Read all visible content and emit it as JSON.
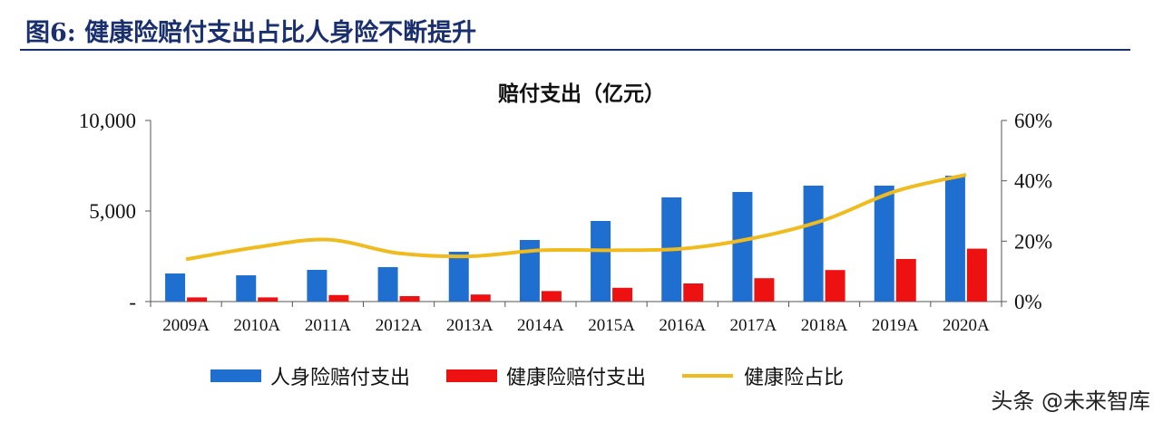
{
  "figure": {
    "title": "图6:  健康险赔付支出占比人身险不断提升"
  },
  "watermark": "头条 @未来智库",
  "chart_data": {
    "type": "bar",
    "title": "赔付支出（亿元）",
    "categories": [
      "2009A",
      "2010A",
      "2011A",
      "2012A",
      "2013A",
      "2014A",
      "2015A",
      "2016A",
      "2017A",
      "2018A",
      "2019A",
      "2020A"
    ],
    "series": [
      {
        "name": "人身险赔付支出",
        "type": "bar",
        "axis": "left",
        "color": "#1f6fd1",
        "values": [
          1550,
          1450,
          1750,
          1900,
          2750,
          3400,
          4450,
          5750,
          6050,
          6400,
          6400,
          6950
        ]
      },
      {
        "name": "健康险赔付支出",
        "type": "bar",
        "axis": "left",
        "color": "#ee1111",
        "values": [
          230,
          230,
          360,
          300,
          390,
          580,
          760,
          1000,
          1290,
          1740,
          2350,
          2920
        ]
      },
      {
        "name": "健康险占比",
        "type": "line",
        "axis": "right",
        "color": "#f0bb1f",
        "values": [
          14,
          18,
          20.5,
          16,
          15,
          17,
          17,
          17.5,
          21,
          27,
          36.5,
          42
        ]
      }
    ],
    "left_axis": {
      "ylim": [
        0,
        10000
      ],
      "ticks": [
        0,
        5000,
        10000
      ],
      "tick_labels": [
        "-",
        "5,000",
        "10,000"
      ]
    },
    "right_axis": {
      "ylim": [
        0,
        60
      ],
      "ticks": [
        0,
        20,
        40,
        60
      ],
      "tick_labels": [
        "0%",
        "20%",
        "40%",
        "60%"
      ]
    },
    "grid": false,
    "legend_position": "bottom"
  }
}
